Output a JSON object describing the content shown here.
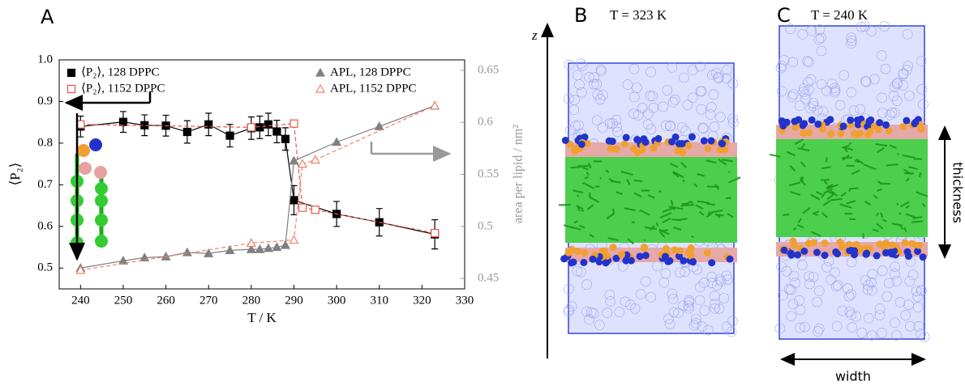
{
  "chart_data": {
    "type": "line",
    "panel_label": "A",
    "xlabel": "T / K",
    "ylabel": "⟨P₂⟩",
    "y2label": "area per lipid / nm²",
    "xlim": [
      235,
      330
    ],
    "xticks": [
      240,
      250,
      260,
      270,
      280,
      290,
      300,
      310,
      320,
      330
    ],
    "ylim": [
      0.45,
      1.0
    ],
    "yticks": [
      0.5,
      0.6,
      0.7,
      0.8,
      0.9,
      {
        "value": 1,
        "label": "1.0"
      }
    ],
    "y2lim": [
      0.44,
      0.66
    ],
    "y2ticks": [
      0.45,
      0.5,
      0.55,
      0.6,
      0.65
    ],
    "grid": false,
    "series": [
      {
        "name": "⟨P₂⟩, 128 DPPC",
        "color": "#000000",
        "marker": "square",
        "filled": true,
        "dashed": false,
        "x": [
          240,
          250,
          255,
          260,
          265,
          270,
          275,
          280,
          282,
          284,
          286,
          288,
          290,
          300,
          310,
          323
        ],
        "values": [
          0.84,
          0.851,
          0.843,
          0.842,
          0.827,
          0.845,
          0.818,
          0.836,
          0.838,
          0.845,
          0.828,
          0.81,
          0.663,
          0.63,
          0.61,
          0.581
        ],
        "errors": [
          0.025,
          0.025,
          0.025,
          0.025,
          0.027,
          0.027,
          0.027,
          0.027,
          0.027,
          0.027,
          0.027,
          0.027,
          0.035,
          0.03,
          0.033,
          0.035
        ]
      },
      {
        "name": "⟨P₂⟩, 1152 DPPC",
        "color": "#e8564a",
        "marker": "square",
        "filled": false,
        "dashed": true,
        "x": [
          240,
          280,
          290,
          292,
          295,
          323
        ],
        "values": [
          0.845,
          0.838,
          0.847,
          0.645,
          0.64,
          0.584
        ]
      },
      {
        "name": "APL, 128 DPPC",
        "color": "#808080",
        "marker": "triangle",
        "filled": true,
        "dashed": false,
        "axis": "y2",
        "x": [
          240,
          250,
          255,
          260,
          265,
          270,
          275,
          280,
          282,
          284,
          286,
          288,
          290,
          300,
          310,
          323
        ],
        "values": [
          0.46,
          0.467,
          0.47,
          0.471,
          0.475,
          0.474,
          0.477,
          0.478,
          0.478,
          0.479,
          0.48,
          0.482,
          0.563,
          0.581,
          0.596,
          0.616
        ]
      },
      {
        "name": "APL, 1152 DPPC",
        "color": "#f08070",
        "marker": "triangle",
        "filled": false,
        "dashed": true,
        "axis": "y2",
        "x": [
          240,
          280,
          290,
          292,
          295,
          323
        ],
        "values": [
          0.458,
          0.484,
          0.487,
          0.56,
          0.564,
          0.616
        ]
      }
    ]
  },
  "panels": {
    "z_axis": "z",
    "b": {
      "label": "B",
      "caption": "T = 323 K"
    },
    "c": {
      "label": "C",
      "caption": "T = 240 K",
      "thickness": "thickness",
      "width": "width"
    }
  }
}
